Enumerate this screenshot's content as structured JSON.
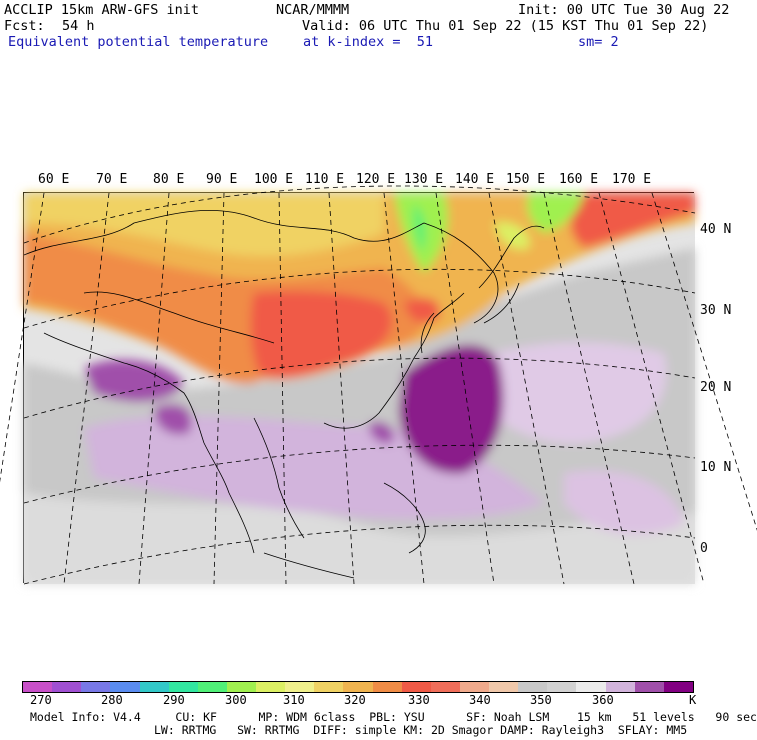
{
  "header": {
    "model": "ACCLIP 15km ARW-GFS init",
    "center": "NCAR/MMMM",
    "init": "Init: 00 UTC Tue 30 Aug 22",
    "fcst_label": "Fcst:",
    "fcst_value": "54 h",
    "valid": "Valid: 06 UTC Thu 01 Sep 22 (15 KST Thu 01 Sep 22)",
    "field": "Equivalent potential temperature",
    "level": "at k-index =  51",
    "smoothing": "sm= 2"
  },
  "map": {
    "lon_labels": [
      "60 E",
      "70 E",
      "80 E",
      "90 E",
      "100 E",
      "110 E",
      "120 E",
      "130 E",
      "140 E",
      "150 E",
      "160 E",
      "170 E"
    ],
    "lat_labels": [
      "40 N",
      "30 N",
      "20 N",
      "10 N",
      "0"
    ]
  },
  "colorbar": {
    "colors": [
      "#c850c8",
      "#a050d2",
      "#7878e6",
      "#5a8cf0",
      "#32c8c8",
      "#32e6a0",
      "#50f078",
      "#a0f050",
      "#dcf064",
      "#f0f08c",
      "#f0d264",
      "#f0b450",
      "#f08c46",
      "#f05a46",
      "#f06e5a",
      "#f0aa8c",
      "#f0c8aa",
      "#c8c8c8",
      "#d2d2d2",
      "#ebebeb",
      "#d2b4dc",
      "#a050aa",
      "#820082"
    ],
    "tick_labels": [
      "270",
      "280",
      "290",
      "300",
      "310",
      "320",
      "330",
      "340",
      "350",
      "360"
    ],
    "unit": "K"
  },
  "footer": {
    "line1": "Model Info: V4.4     CU: KF      MP: WDM 6class  PBL: YSU      SF: Noah LSM    15 km   51 levels   90 sec",
    "line2": "LW: RRTMG   SW: RRTMG  DIFF: simple KM: 2D Smagor DAMP: Rayleigh3  SFLAY: MM5"
  }
}
